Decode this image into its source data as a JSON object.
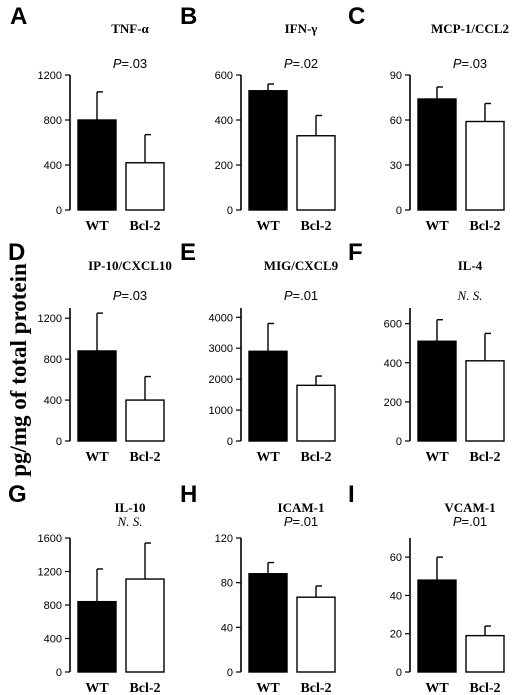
{
  "y_axis_label": "pg/mg of total protein",
  "chart_data": [
    {
      "type": "bar",
      "panel": "A",
      "title": "TNF-α",
      "annotation_prefix": "P",
      "annotation": "=.03",
      "categories": [
        "WT",
        "Bcl-2"
      ],
      "values": [
        800,
        420
      ],
      "errors": [
        250,
        250
      ],
      "ylim": [
        0,
        1200
      ],
      "yticks": [
        0,
        400,
        800,
        1200
      ],
      "bar_colors": [
        "#000000",
        "#ffffff"
      ],
      "ylabel": "pg/mg of total protein"
    },
    {
      "type": "bar",
      "panel": "B",
      "title": "IFN-γ",
      "annotation_prefix": "P",
      "annotation": "=.02",
      "categories": [
        "WT",
        "Bcl-2"
      ],
      "values": [
        530,
        330
      ],
      "errors": [
        30,
        90
      ],
      "ylim": [
        0,
        600
      ],
      "yticks": [
        0,
        200,
        400,
        600
      ],
      "bar_colors": [
        "#000000",
        "#ffffff"
      ],
      "ylabel": "pg/mg of total protein"
    },
    {
      "type": "bar",
      "panel": "C",
      "title": "MCP-1/CCL2",
      "annotation_prefix": "P",
      "annotation": "=.03",
      "categories": [
        "WT",
        "Bcl-2"
      ],
      "values": [
        74,
        59
      ],
      "errors": [
        8,
        12
      ],
      "ylim": [
        0,
        90
      ],
      "yticks": [
        0,
        30,
        60,
        90
      ],
      "bar_colors": [
        "#000000",
        "#ffffff"
      ],
      "ylabel": "pg/mg of total protein"
    },
    {
      "type": "bar",
      "panel": "D",
      "title": "IP-10/CXCL10",
      "annotation_prefix": "P",
      "annotation": "=.03",
      "categories": [
        "WT",
        "Bcl-2"
      ],
      "values": [
        880,
        400
      ],
      "errors": [
        370,
        230
      ],
      "ylim": [
        0,
        1300
      ],
      "yticks": [
        0,
        400,
        800,
        1200
      ],
      "bar_colors": [
        "#000000",
        "#ffffff"
      ],
      "ylabel": "pg/mg of total protein"
    },
    {
      "type": "bar",
      "panel": "E",
      "title": "MIG/CXCL9",
      "annotation_prefix": "P",
      "annotation": "=.01",
      "categories": [
        "WT",
        "Bcl-2"
      ],
      "values": [
        2900,
        1800
      ],
      "errors": [
        900,
        300
      ],
      "ylim": [
        0,
        4300
      ],
      "yticks": [
        0,
        1000,
        2000,
        3000,
        4000
      ],
      "bar_colors": [
        "#000000",
        "#ffffff"
      ],
      "ylabel": "pg/mg of total protein"
    },
    {
      "type": "bar",
      "panel": "F",
      "title": "IL-4",
      "annotation_prefix": "",
      "annotation": "N. S.",
      "categories": [
        "WT",
        "Bcl-2"
      ],
      "values": [
        510,
        410
      ],
      "errors": [
        110,
        140
      ],
      "ylim": [
        0,
        680
      ],
      "yticks": [
        0,
        200,
        400,
        600
      ],
      "bar_colors": [
        "#000000",
        "#ffffff"
      ],
      "ylabel": "pg/mg of total protein"
    },
    {
      "type": "bar",
      "panel": "G",
      "title": "IL-10",
      "annotation_prefix": "",
      "annotation": "N. S.",
      "categories": [
        "WT",
        "Bcl-2"
      ],
      "values": [
        840,
        1110
      ],
      "errors": [
        390,
        430
      ],
      "ylim": [
        0,
        1600
      ],
      "yticks": [
        0,
        400,
        800,
        1200,
        1600
      ],
      "bar_colors": [
        "#000000",
        "#ffffff"
      ],
      "ylabel": "pg/mg of total protein"
    },
    {
      "type": "bar",
      "panel": "H",
      "title": "ICAM-1",
      "annotation_prefix": "P",
      "annotation": "=.01",
      "categories": [
        "WT",
        "Bcl-2"
      ],
      "values": [
        88,
        67
      ],
      "errors": [
        10,
        10
      ],
      "ylim": [
        0,
        120
      ],
      "yticks": [
        0,
        40,
        80,
        120
      ],
      "bar_colors": [
        "#000000",
        "#ffffff"
      ],
      "ylabel": "pg/mg of total protein"
    },
    {
      "type": "bar",
      "panel": "I",
      "title": "VCAM-1",
      "annotation_prefix": "P",
      "annotation": "=.01",
      "categories": [
        "WT",
        "Bcl-2"
      ],
      "values": [
        48,
        19
      ],
      "errors": [
        12,
        5
      ],
      "ylim": [
        0,
        70
      ],
      "yticks": [
        0,
        20,
        40,
        60
      ],
      "bar_colors": [
        "#000000",
        "#ffffff"
      ],
      "ylabel": "pg/mg of total protein"
    }
  ]
}
